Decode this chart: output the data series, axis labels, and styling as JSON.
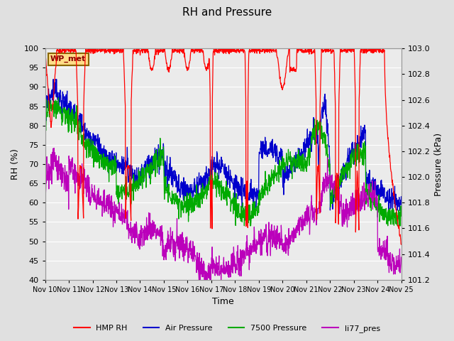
{
  "title": "RH and Pressure",
  "xlabel": "Time",
  "ylabel_left": "RH (%)",
  "ylabel_right": "Pressure (kPa)",
  "ylim_left": [
    40,
    100
  ],
  "ylim_right": [
    101.2,
    103.0
  ],
  "xtick_labels": [
    "Nov 10",
    "Nov 11",
    "Nov 12",
    "Nov 13",
    "Nov 14",
    "Nov 15",
    "Nov 16",
    "Nov 17",
    "Nov 18",
    "Nov 19",
    "Nov 20",
    "Nov 21",
    "Nov 22",
    "Nov 23",
    "Nov 24",
    "Nov 25"
  ],
  "yticks_left": [
    40,
    45,
    50,
    55,
    60,
    65,
    70,
    75,
    80,
    85,
    90,
    95,
    100
  ],
  "yticks_right": [
    101.2,
    101.4,
    101.6,
    101.8,
    102.0,
    102.2,
    102.4,
    102.6,
    102.8,
    103.0
  ],
  "legend_entries": [
    "HMP RH",
    "Air Pressure",
    "7500 Pressure",
    "li77_pres"
  ],
  "legend_colors": [
    "#ff0000",
    "#0000cc",
    "#00aa00",
    "#bb00bb"
  ],
  "wp_met_label": "WP_met",
  "wp_met_bg": "#ffdd88",
  "wp_met_border": "#886600",
  "bg_color": "#e0e0e0",
  "plot_bg": "#ebebeb",
  "grid_color": "#ffffff",
  "n_points": 1440
}
